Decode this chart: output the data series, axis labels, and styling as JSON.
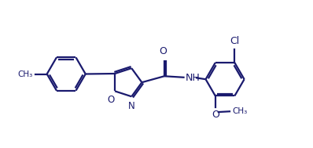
{
  "background_color": "#ffffff",
  "line_color": "#1a1a6e",
  "line_width": 1.6,
  "font_size": 8.5,
  "figsize": [
    3.98,
    1.89
  ],
  "dpi": 100,
  "xlim": [
    0,
    10
  ],
  "ylim": [
    0,
    4.74
  ]
}
